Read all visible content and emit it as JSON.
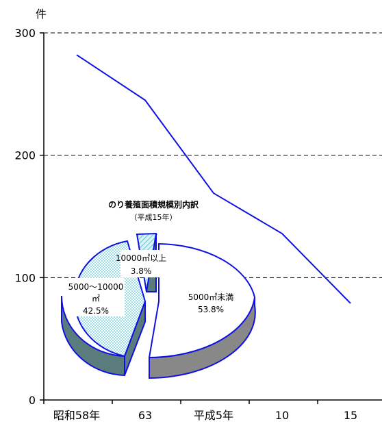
{
  "chart_data": [
    {
      "type": "line",
      "unit": "件",
      "categories": [
        "昭和58年",
        "63",
        "平成5年",
        "10",
        "15"
      ],
      "y_ticks": [
        "0",
        "100",
        "200",
        "300"
      ],
      "ylim": [
        0,
        300
      ],
      "grid": true,
      "series": [
        {
          "values": [
            282,
            245,
            169,
            136,
            79
          ],
          "color": "#1010e0"
        }
      ]
    },
    {
      "type": "pie",
      "title": "のり養殖面積規模別内訳",
      "subtitle": "（平成15年）",
      "slices": [
        {
          "name": "5000㎡未満",
          "percent_text": "53.8%",
          "value": 53.8,
          "color": "#ffffff",
          "side_color": "#888888"
        },
        {
          "name": "10000㎡以上",
          "percent_text": "3.8%",
          "value": 3.8,
          "color": "#b8e8f0",
          "side_color": "#5a7c7c"
        },
        {
          "name_line1": "5000～10000",
          "name_line2": "㎡",
          "percent_text": "42.5%",
          "value": 42.5,
          "color": "#b8e8f0",
          "side_color": "#5a7c7c"
        }
      ]
    }
  ]
}
